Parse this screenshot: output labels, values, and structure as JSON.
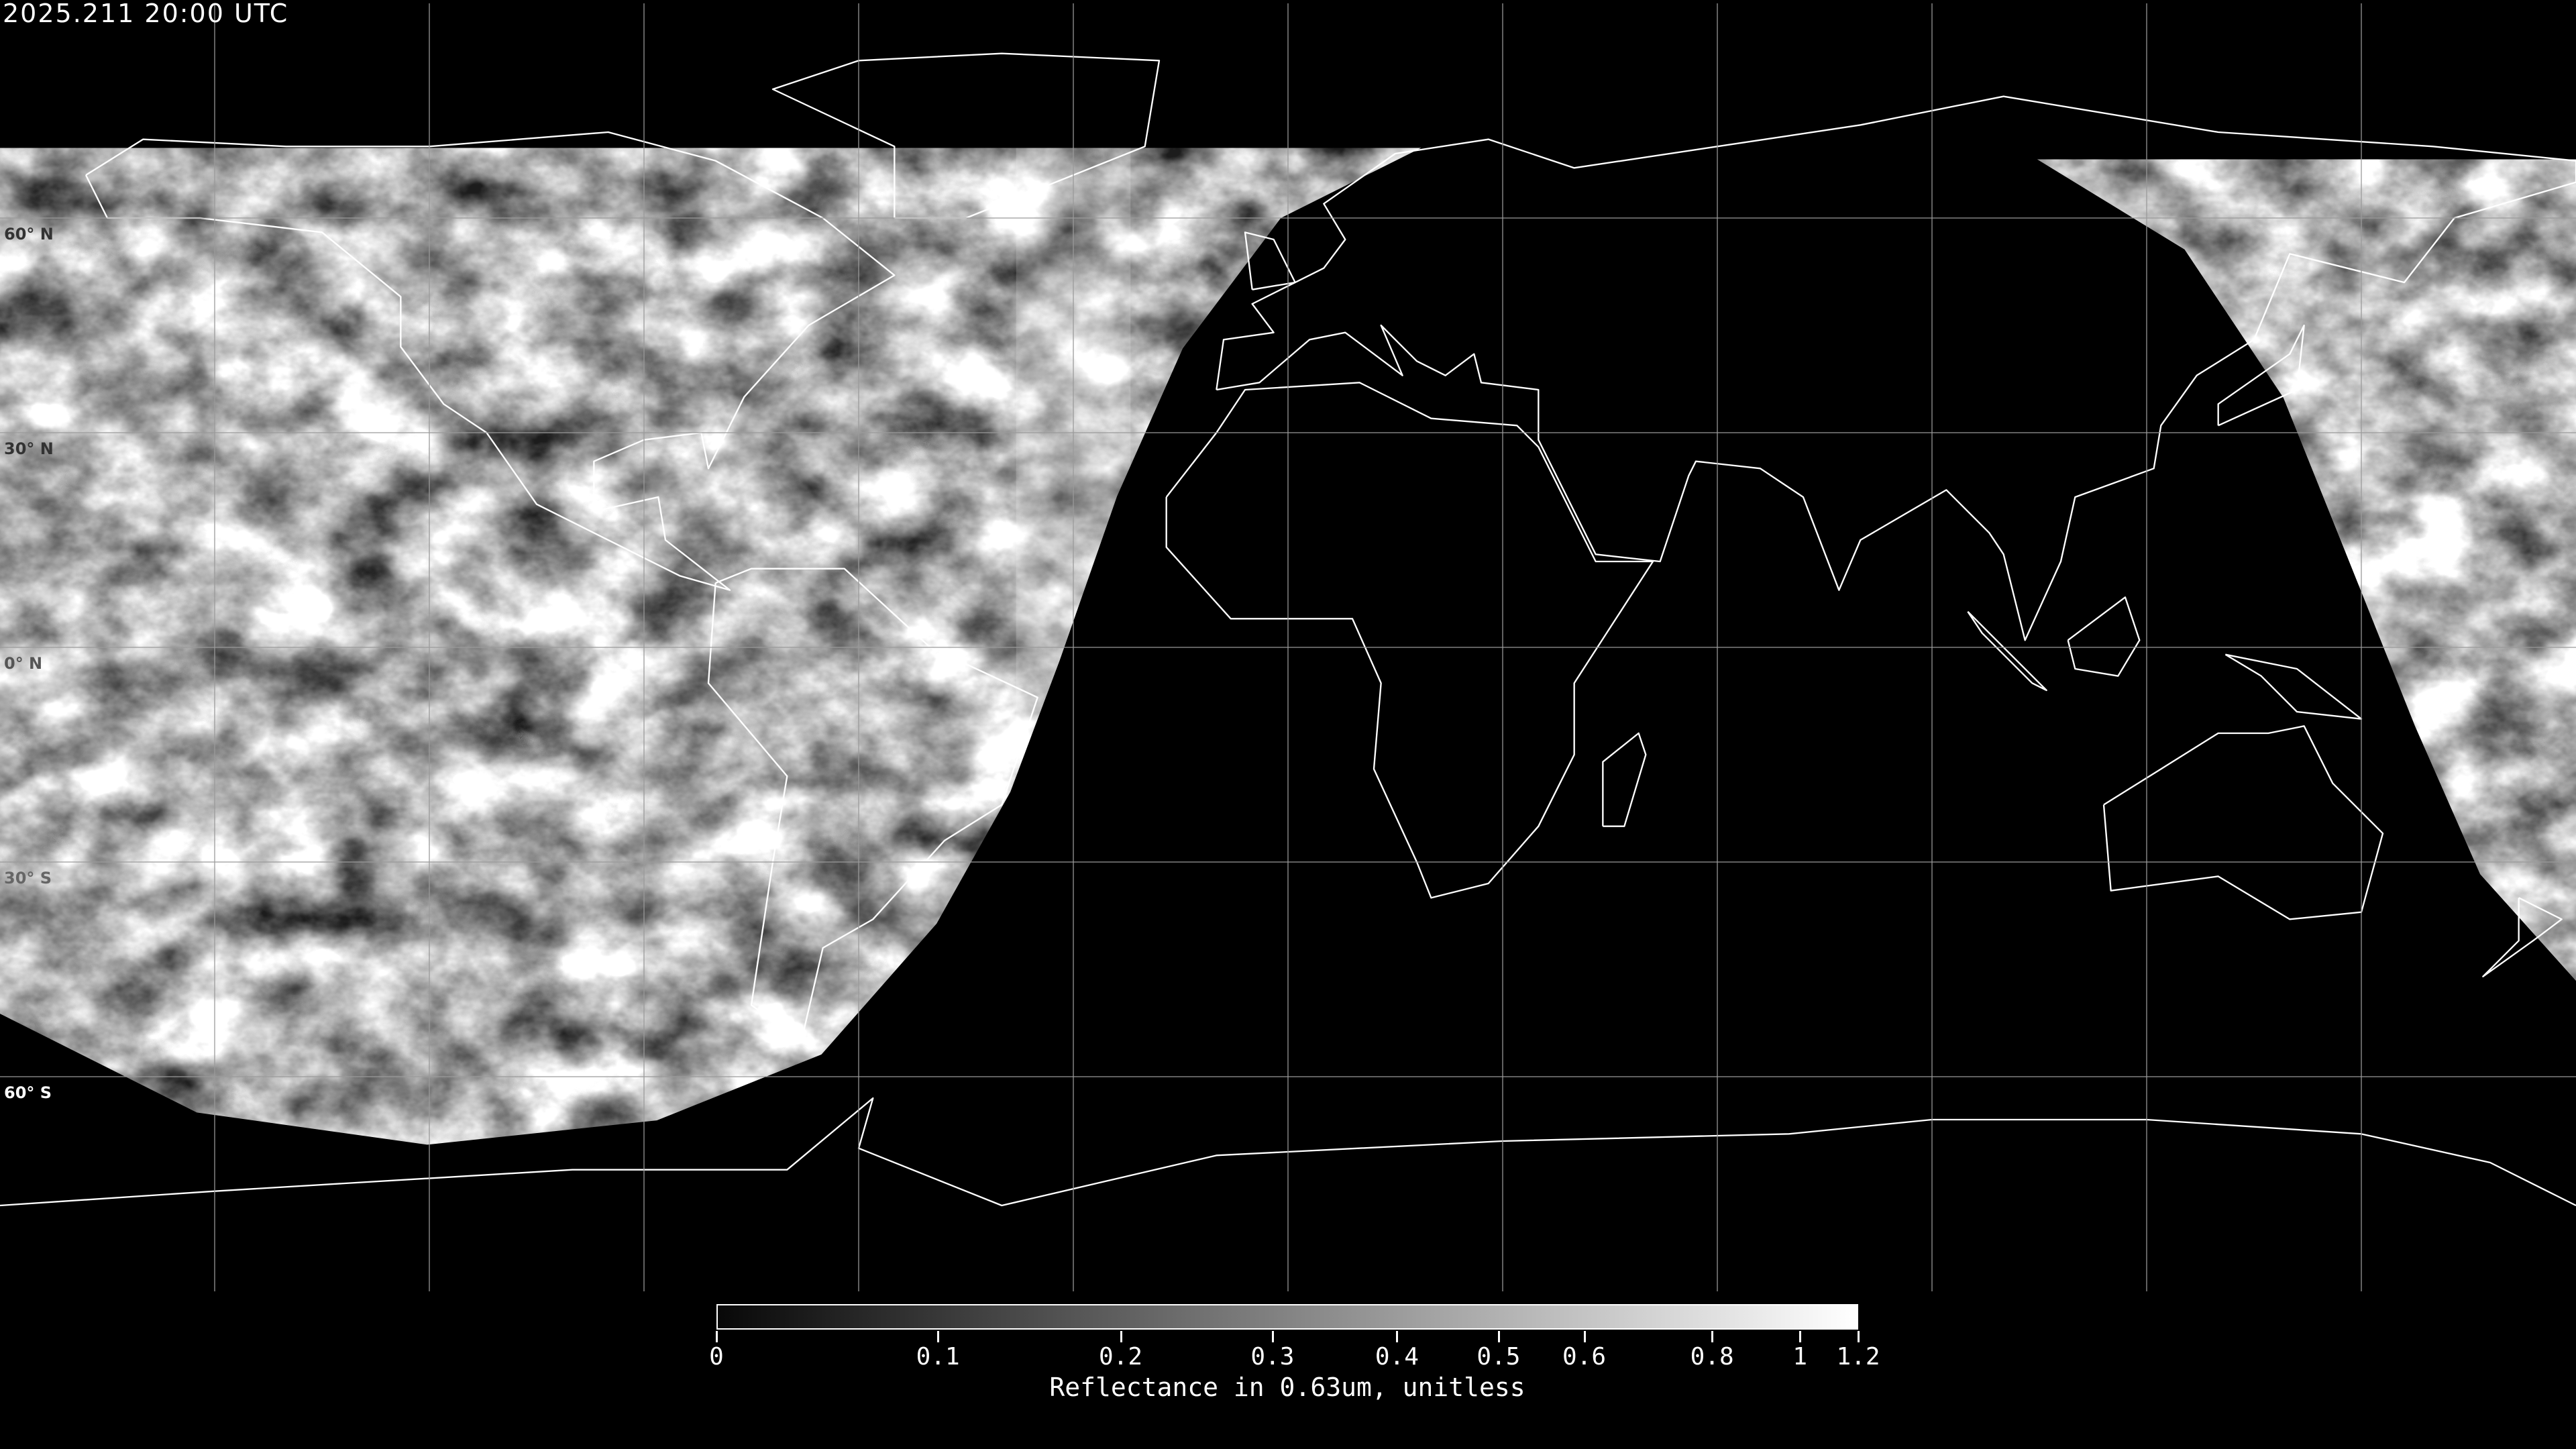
{
  "title": "2025.211 20:00 UTC",
  "map": {
    "projection": "equirectangular",
    "grid_spacing_deg": 30,
    "lat_labels": [
      {
        "lat": 60,
        "text": "60° N",
        "color": "#333333"
      },
      {
        "lat": 30,
        "text": "30° N",
        "color": "#333333"
      },
      {
        "lat": 0,
        "text": "0° N",
        "color": "#555555"
      },
      {
        "lat": -30,
        "text": "30° S",
        "color": "#666666"
      },
      {
        "lat": -60,
        "text": "60° S",
        "color": "#ffffff"
      }
    ],
    "coastline_color": "#ffffff",
    "night_color": "#000000"
  },
  "colorbar": {
    "colormap": "grayscale",
    "range": [
      0,
      1.2
    ],
    "ticks": [
      "0",
      "0.1",
      "0.2",
      "0.3",
      "0.4",
      "0.5",
      "0.6",
      "0.8",
      "1",
      "1.2"
    ],
    "label": "Reflectance in 0.63um, unitless"
  }
}
